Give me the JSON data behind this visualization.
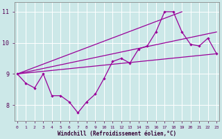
{
  "xlabel": "Windchill (Refroidissement éolien,°C)",
  "background_color": "#cce8e8",
  "line_color": "#990099",
  "grid_color": "#ffffff",
  "x": [
    0,
    1,
    2,
    3,
    4,
    5,
    6,
    7,
    8,
    9,
    10,
    11,
    12,
    13,
    14,
    15,
    16,
    17,
    18,
    19,
    20,
    21,
    22,
    23
  ],
  "zigzag": [
    9.0,
    8.7,
    8.55,
    9.0,
    8.3,
    8.3,
    8.1,
    7.75,
    8.1,
    8.35,
    8.85,
    9.4,
    9.5,
    9.35,
    9.8,
    9.9,
    10.35,
    11.0,
    11.0,
    10.35,
    9.95,
    9.9,
    10.15,
    9.65
  ],
  "straight_lines": [
    [
      [
        0,
        19
      ],
      [
        9.0,
        11.0
      ]
    ],
    [
      [
        0,
        23
      ],
      [
        9.0,
        10.35
      ]
    ],
    [
      [
        0,
        23
      ],
      [
        9.0,
        9.65
      ]
    ]
  ],
  "ylim": [
    7.5,
    11.3
  ],
  "yticks": [
    8,
    9,
    10,
    11
  ],
  "xlim": [
    -0.3,
    23.3
  ]
}
